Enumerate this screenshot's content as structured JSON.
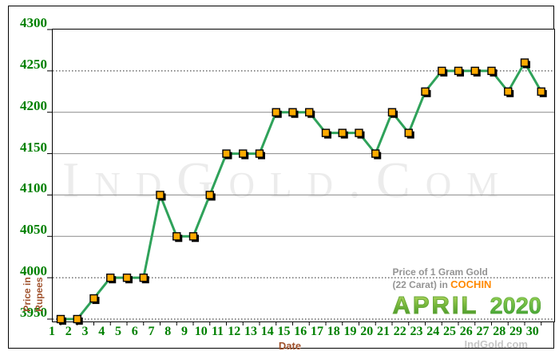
{
  "watermark": "IndGold.Com",
  "credit": "IndGold.com",
  "axes": {
    "y_title": "Price in\nRupees",
    "x_title": "Date"
  },
  "legend": {
    "line1": "Price of 1 Gram Gold",
    "line2_prefix": "(22 Carat) in ",
    "line2_highlight": "COCHIN",
    "month": "APRIL",
    "year": "2020"
  },
  "colors": {
    "tick_label_green": "#008000",
    "axis_title_brown": "#a0522d",
    "line_green": "#2fa25a",
    "marker_orange": "#ffaa00",
    "marker_border": "#000000",
    "grid_gray": "#8a8a8a",
    "grid_dotted_black": "#222222",
    "legend_gray": "#949494",
    "cochin_orange": "#ff8800",
    "watermark_gray": "#ececec"
  },
  "chart_data": {
    "type": "line",
    "title": "Price of 1 Gram Gold (22 Carat) in COCHIN - APRIL 2020",
    "xlabel": "Date",
    "ylabel": "Price in Rupees",
    "x": [
      1,
      2,
      3,
      4,
      5,
      6,
      7,
      8,
      9,
      10,
      11,
      12,
      13,
      14,
      15,
      16,
      17,
      18,
      19,
      20,
      21,
      22,
      23,
      24,
      25,
      26,
      27,
      28,
      29,
      30
    ],
    "values": [
      3950,
      3950,
      3975,
      4000,
      4000,
      4000,
      4100,
      4050,
      4050,
      4100,
      4150,
      4150,
      4150,
      4200,
      4200,
      4200,
      4175,
      4175,
      4175,
      4150,
      4200,
      4175,
      4225,
      4250,
      4250,
      4250,
      4250,
      4225,
      4260,
      4225
    ],
    "ylim": [
      3940,
      4300
    ],
    "yticks": [
      4300,
      4250,
      4200,
      4150,
      4100,
      4050,
      4000,
      3950
    ],
    "dotted_gridlines": [
      4250,
      4000,
      3950
    ],
    "grid": true,
    "legend_position": "bottom-right",
    "marker": "square"
  }
}
